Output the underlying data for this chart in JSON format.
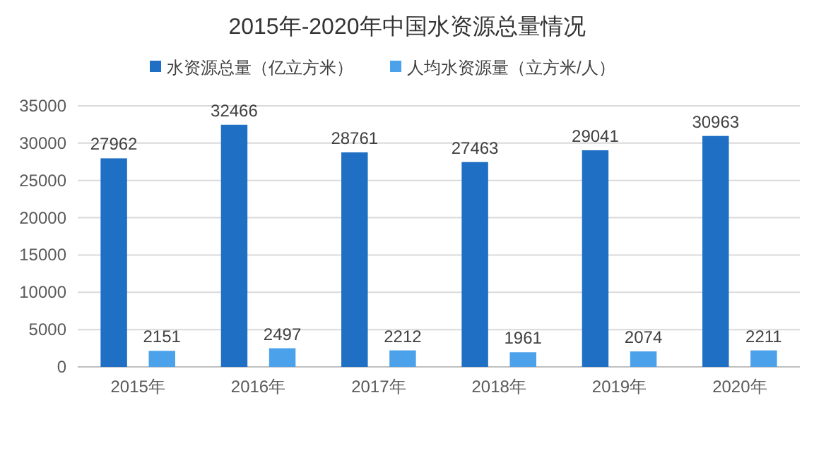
{
  "chart_data": {
    "type": "bar",
    "title": "2015年-2020年中国水资源总量情况",
    "categories": [
      "2015年",
      "2016年",
      "2017年",
      "2018年",
      "2019年",
      "2020年"
    ],
    "series": [
      {
        "name": "水资源总量（亿立方米）",
        "color": "#1f6fc5",
        "values": [
          27962,
          32466,
          28761,
          27463,
          29041,
          30963
        ]
      },
      {
        "name": "人均水资源量（立方米/人）",
        "color": "#4ba1ea",
        "values": [
          2151,
          2497,
          2212,
          1961,
          2074,
          2211
        ]
      }
    ],
    "ylim": [
      0,
      35000
    ],
    "yticks": [
      0,
      5000,
      10000,
      15000,
      20000,
      25000,
      30000,
      35000
    ],
    "grid": "y",
    "legend": "top",
    "data_labels": true
  }
}
